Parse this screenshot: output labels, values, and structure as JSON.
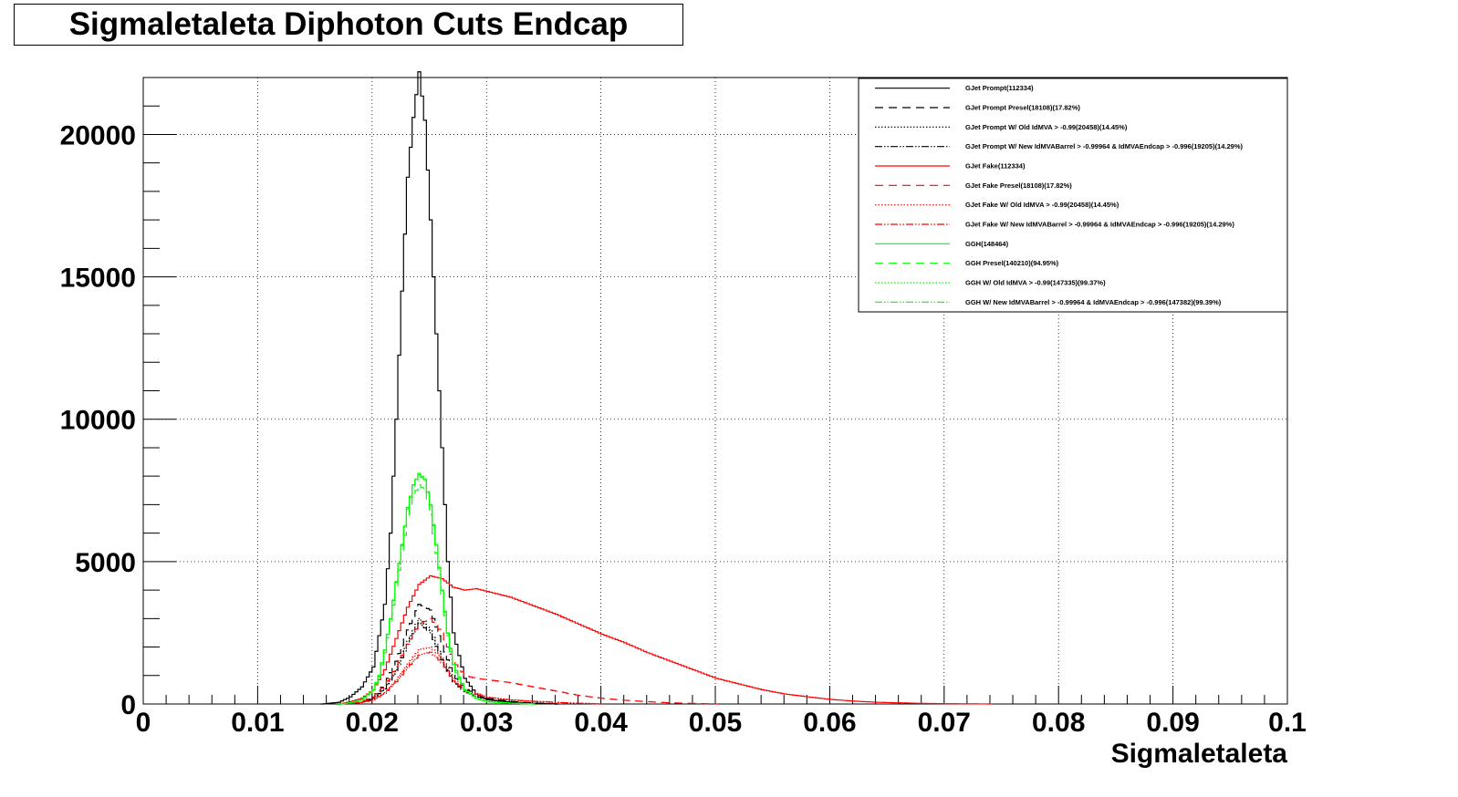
{
  "chart_data": {
    "type": "line",
    "title": "Sigmaletaleta Diphoton Cuts Endcap",
    "xlabel": "Sigmaletaleta",
    "ylabel": "",
    "xlim": [
      0,
      0.1
    ],
    "ylim": [
      0,
      22000
    ],
    "x_ticks": [
      "0",
      "0.01",
      "0.02",
      "0.03",
      "0.04",
      "0.05",
      "0.06",
      "0.07",
      "0.08",
      "0.09",
      "0.1"
    ],
    "y_ticks": [
      "0",
      "5000",
      "10000",
      "15000",
      "20000"
    ],
    "grid": true,
    "legend_position": "top-right",
    "series": [
      {
        "name": "GJet Prompt(112334)",
        "color": "#000000",
        "style": "solid",
        "x": [
          0.0155,
          0.017,
          0.018,
          0.019,
          0.02,
          0.021,
          0.0215,
          0.022,
          0.0225,
          0.023,
          0.0235,
          0.024,
          0.0245,
          0.025,
          0.0255,
          0.026,
          0.0265,
          0.027,
          0.028,
          0.029,
          0.03,
          0.032,
          0.034,
          0.036
        ],
        "y": [
          0,
          60,
          250,
          600,
          1300,
          3500,
          6000,
          10000,
          14500,
          18500,
          20600,
          22200,
          20500,
          17000,
          13000,
          9000,
          5000,
          2500,
          900,
          350,
          150,
          60,
          20,
          0
        ]
      },
      {
        "name": "GJet Prompt Presel(18108)(17.82%)",
        "color": "#000000",
        "style": "dashed",
        "x": [
          0.017,
          0.019,
          0.02,
          0.021,
          0.022,
          0.023,
          0.024,
          0.025,
          0.026,
          0.027,
          0.028,
          0.029,
          0.03,
          0.032,
          0.034,
          0.036
        ],
        "y": [
          0,
          80,
          250,
          700,
          1500,
          2600,
          3500,
          3300,
          2100,
          1000,
          550,
          350,
          200,
          90,
          40,
          0
        ]
      },
      {
        "name": "GJet Prompt W/ Old IdMVA > -0.99(20458)(14.45%)",
        "color": "#000000",
        "style": "dotted",
        "x": [
          0.017,
          0.019,
          0.02,
          0.021,
          0.022,
          0.023,
          0.024,
          0.025,
          0.026,
          0.027,
          0.028,
          0.029,
          0.03,
          0.032,
          0.034,
          0.036
        ],
        "y": [
          0,
          60,
          200,
          550,
          1200,
          2200,
          3000,
          2600,
          1600,
          800,
          450,
          280,
          160,
          70,
          30,
          0
        ]
      },
      {
        "name": "GJet Prompt W/ New IdMVABarrel > -0.99964 & IdMVAEndcap > -0.996(19205)(14.29%)",
        "color": "#000000",
        "style": "dashdotdot",
        "x": [
          0.017,
          0.019,
          0.02,
          0.021,
          0.022,
          0.023,
          0.024,
          0.025,
          0.026,
          0.027,
          0.028,
          0.029,
          0.03,
          0.032,
          0.034,
          0.036
        ],
        "y": [
          0,
          60,
          200,
          530,
          1150,
          2100,
          2850,
          2500,
          1550,
          780,
          430,
          270,
          150,
          65,
          25,
          0
        ]
      },
      {
        "name": "GJet Fake(112334)",
        "color": "#ff0000",
        "style": "solid",
        "x": [
          0.017,
          0.018,
          0.019,
          0.02,
          0.021,
          0.022,
          0.023,
          0.024,
          0.025,
          0.026,
          0.027,
          0.028,
          0.029,
          0.03,
          0.032,
          0.034,
          0.036,
          0.038,
          0.04,
          0.042,
          0.044,
          0.046,
          0.048,
          0.05,
          0.052,
          0.054,
          0.056,
          0.058,
          0.06,
          0.062,
          0.064,
          0.066,
          0.068,
          0.07,
          0.072,
          0.074
        ],
        "y": [
          0,
          80,
          200,
          500,
          1200,
          2300,
          3400,
          4200,
          4500,
          4400,
          4100,
          4000,
          4050,
          3950,
          3750,
          3450,
          3150,
          2800,
          2450,
          2150,
          1800,
          1500,
          1200,
          900,
          700,
          500,
          350,
          250,
          160,
          100,
          60,
          40,
          20,
          10,
          5,
          0
        ]
      },
      {
        "name": "GJet Fake Presel(18108)(17.82%)",
        "color": "#ff0000",
        "style": "dashed",
        "x": [
          0.017,
          0.019,
          0.02,
          0.021,
          0.022,
          0.023,
          0.024,
          0.025,
          0.026,
          0.027,
          0.028,
          0.029,
          0.03,
          0.032,
          0.034,
          0.036,
          0.038,
          0.04,
          0.042,
          0.044,
          0.046,
          0.048,
          0.05
        ],
        "y": [
          0,
          80,
          250,
          650,
          1300,
          2100,
          2800,
          3000,
          2500,
          1500,
          1000,
          900,
          850,
          750,
          600,
          450,
          300,
          200,
          130,
          80,
          40,
          20,
          0
        ]
      },
      {
        "name": "GJet Fake W/ Old IdMVA > -0.99(20458)(14.45%)",
        "color": "#ff0000",
        "style": "dotted",
        "x": [
          0.017,
          0.019,
          0.02,
          0.021,
          0.022,
          0.023,
          0.024,
          0.025,
          0.026,
          0.027,
          0.028,
          0.03,
          0.032,
          0.034,
          0.036,
          0.038,
          0.04
        ],
        "y": [
          0,
          50,
          150,
          400,
          850,
          1400,
          1900,
          2000,
          1600,
          900,
          500,
          250,
          150,
          100,
          60,
          30,
          0
        ]
      },
      {
        "name": "GJet Fake W/ New IdMVABarrel > -0.99964 & IdMVAEndcap > -0.996(19205)(14.29%)",
        "color": "#ff0000",
        "style": "dashdotdot",
        "x": [
          0.017,
          0.019,
          0.02,
          0.021,
          0.022,
          0.023,
          0.024,
          0.025,
          0.026,
          0.027,
          0.028,
          0.03,
          0.032,
          0.034,
          0.036,
          0.038,
          0.04
        ],
        "y": [
          0,
          45,
          140,
          370,
          780,
          1280,
          1720,
          1820,
          1450,
          820,
          460,
          230,
          140,
          90,
          55,
          25,
          0
        ]
      },
      {
        "name": "GGH(148464)",
        "color": "#00ff00",
        "style": "solid",
        "x": [
          0.017,
          0.018,
          0.019,
          0.02,
          0.0205,
          0.021,
          0.0215,
          0.022,
          0.0225,
          0.023,
          0.0235,
          0.024,
          0.0245,
          0.025,
          0.0255,
          0.026,
          0.0265,
          0.027,
          0.028,
          0.029,
          0.03,
          0.032,
          0.034
        ],
        "y": [
          0,
          40,
          150,
          500,
          1000,
          1900,
          3000,
          4300,
          5600,
          6900,
          7700,
          8100,
          7900,
          7000,
          5600,
          4000,
          2500,
          1400,
          500,
          200,
          80,
          30,
          0
        ]
      },
      {
        "name": "GGH Presel(140210)(94.95%)",
        "color": "#00ff00",
        "style": "dashed",
        "x": [
          0.017,
          0.018,
          0.019,
          0.02,
          0.0205,
          0.021,
          0.0215,
          0.022,
          0.0225,
          0.023,
          0.0235,
          0.024,
          0.0245,
          0.025,
          0.0255,
          0.026,
          0.0265,
          0.027,
          0.028,
          0.029,
          0.03,
          0.032,
          0.034
        ],
        "y": [
          0,
          38,
          140,
          470,
          950,
          1800,
          2850,
          4100,
          5300,
          6550,
          7300,
          7700,
          7500,
          6650,
          5300,
          3800,
          2400,
          1300,
          480,
          190,
          75,
          28,
          0
        ]
      },
      {
        "name": "GGH W/ Old IdMVA > -0.99(147335)(99.37%)",
        "color": "#00ff00",
        "style": "dotted",
        "x": [
          0.017,
          0.018,
          0.019,
          0.02,
          0.0205,
          0.021,
          0.0215,
          0.022,
          0.0225,
          0.023,
          0.0235,
          0.024,
          0.0245,
          0.025,
          0.0255,
          0.026,
          0.0265,
          0.027,
          0.028,
          0.029,
          0.03,
          0.032,
          0.034
        ],
        "y": [
          0,
          40,
          150,
          500,
          1000,
          1880,
          2980,
          4270,
          5560,
          6850,
          7650,
          8050,
          7850,
          6950,
          5560,
          3970,
          2480,
          1390,
          495,
          198,
          79,
          30,
          0
        ]
      },
      {
        "name": "GGH W/ New IdMVABarrel > -0.99964 & IdMVAEndcap > -0.996(147382)(99.39%)",
        "color": "#00ff00",
        "style": "dashdotdot",
        "x": [
          0.017,
          0.018,
          0.019,
          0.02,
          0.0205,
          0.021,
          0.0215,
          0.022,
          0.0225,
          0.023,
          0.0235,
          0.024,
          0.0245,
          0.025,
          0.0255,
          0.026,
          0.0265,
          0.027,
          0.028,
          0.029,
          0.03,
          0.032,
          0.034
        ],
        "y": [
          0,
          40,
          150,
          500,
          1000,
          1885,
          2985,
          4275,
          5565,
          6855,
          7655,
          8055,
          7855,
          6955,
          5565,
          3975,
          2485,
          1392,
          496,
          199,
          79,
          30,
          0
        ]
      }
    ]
  }
}
